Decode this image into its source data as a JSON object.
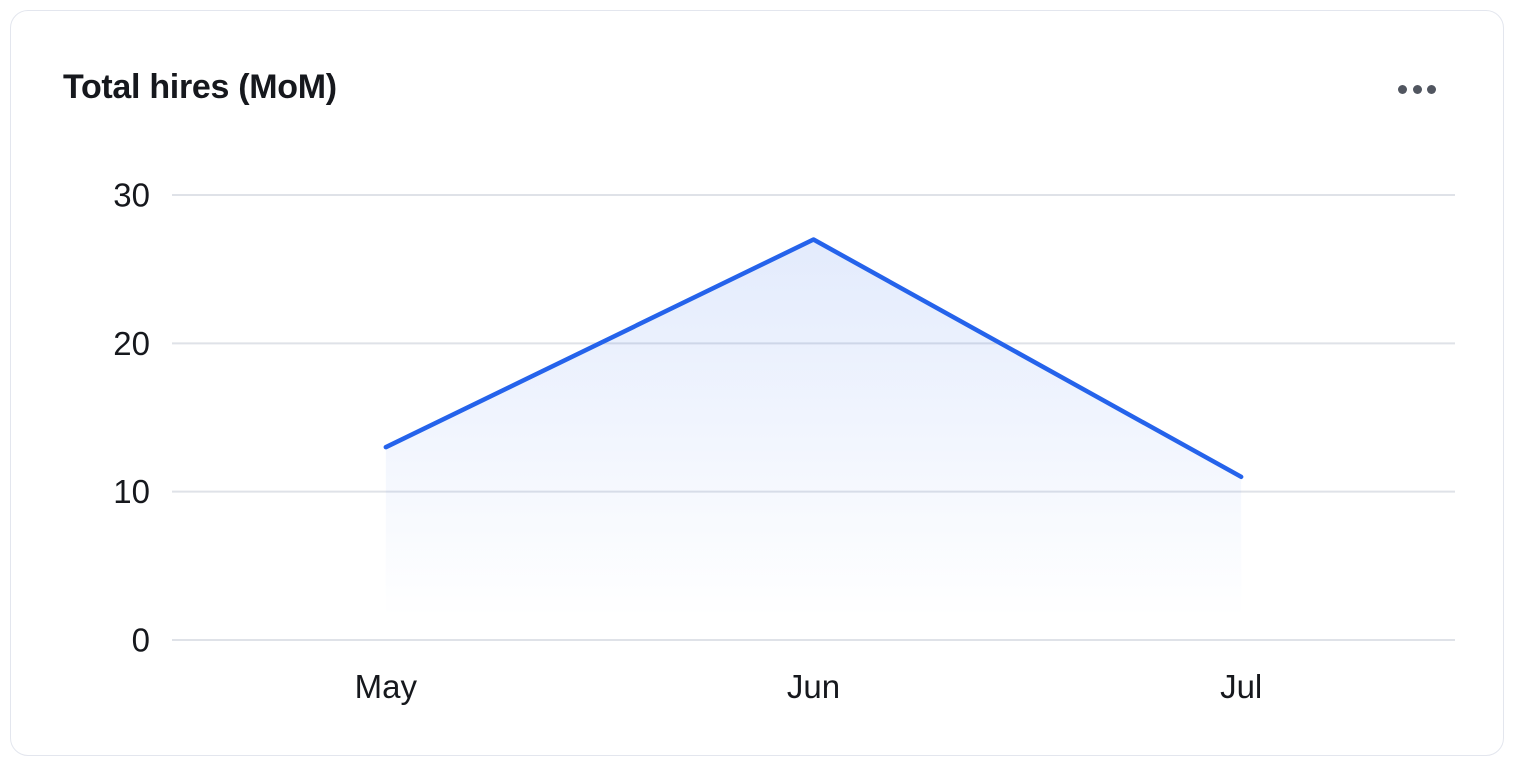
{
  "card": {
    "title": "Total hires (MoM)",
    "menu_icon": "ellipsis-horizontal-icon"
  },
  "chart_data": {
    "type": "area",
    "title": "Total hires (MoM)",
    "categories": [
      "May",
      "Jun",
      "Jul"
    ],
    "series": [
      {
        "name": "Total hires",
        "values": [
          13,
          27,
          11
        ]
      }
    ],
    "ylim": [
      0,
      30
    ],
    "yticks": [
      0,
      10,
      20,
      30
    ],
    "xlabel": "",
    "ylabel": "",
    "grid": "horizontal",
    "legend_position": "none",
    "colors": {
      "line": "#2563eb",
      "area_top": "rgba(37,99,235,0.13)",
      "area_bottom": "rgba(37,99,235,0)",
      "gridline": "#dfe2e8",
      "tick_label": "#16181d"
    }
  }
}
